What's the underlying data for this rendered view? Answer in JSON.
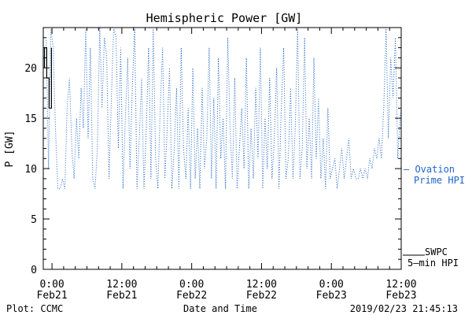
{
  "chart_data": {
    "type": "line",
    "title": "Hemispheric Power [GW]",
    "ylabel": "P [GW]",
    "xlabel": "Date and Time",
    "ylim": [
      0,
      24
    ],
    "yticks": [
      0,
      5,
      10,
      15,
      20
    ],
    "xlim_hours": [
      -1.5,
      60
    ],
    "xticks": [
      {
        "hour": 0,
        "time": "0:00",
        "date": "Feb21"
      },
      {
        "hour": 12,
        "time": "12:00",
        "date": "Feb21"
      },
      {
        "hour": 24,
        "time": "0:00",
        "date": "Feb22"
      },
      {
        "hour": 36,
        "time": "12:00",
        "date": "Feb22"
      },
      {
        "hour": 48,
        "time": "0:00",
        "date": "Feb23"
      },
      {
        "hour": 60,
        "time": "12:00",
        "date": "Feb23"
      }
    ],
    "series": [
      {
        "name": "Ovation Prime HPI",
        "legend_lines": [
          "— Ovation",
          "Prime HPI"
        ],
        "color": "#1f64c8",
        "style": "dotted",
        "x": [
          -1.0,
          -0.6,
          -0.2,
          0.2,
          0.6,
          1.0,
          1.4,
          1.8,
          2.2,
          2.6,
          3.0,
          3.4,
          3.8,
          4.2,
          4.6,
          5.0,
          5.4,
          5.8,
          6.2,
          6.6,
          7.0,
          7.4,
          7.8,
          8.2,
          8.6,
          9.0,
          9.4,
          9.8,
          10.2,
          10.6,
          11.0,
          11.4,
          11.8,
          12.2,
          12.6,
          13.0,
          13.4,
          13.8,
          14.2,
          14.6,
          15.0,
          15.4,
          15.8,
          16.2,
          16.6,
          17.0,
          17.4,
          17.8,
          18.2,
          18.6,
          19.0,
          19.4,
          19.8,
          20.2,
          20.6,
          21.0,
          21.4,
          21.8,
          22.2,
          22.6,
          23.0,
          23.4,
          23.8,
          24.2,
          24.6,
          25.0,
          25.4,
          25.8,
          26.2,
          26.6,
          27.0,
          27.4,
          27.8,
          28.2,
          28.6,
          29.0,
          29.4,
          29.8,
          30.2,
          30.6,
          31.0,
          31.4,
          31.8,
          32.2,
          32.6,
          33.0,
          33.4,
          33.8,
          34.2,
          34.6,
          35.0,
          35.4,
          35.8,
          36.2,
          36.6,
          37.0,
          37.4,
          37.8,
          38.2,
          38.6,
          39.0,
          39.4,
          39.8,
          40.2,
          40.6,
          41.0,
          41.4,
          41.8,
          42.2,
          42.6,
          43.0,
          43.4,
          43.8,
          44.2,
          44.6,
          45.0,
          45.4,
          45.8,
          46.2,
          46.6,
          47.0,
          47.4,
          47.8,
          48.2,
          48.6,
          49.0,
          49.4,
          49.8,
          50.2,
          50.6,
          51.0,
          51.4,
          51.8,
          52.2,
          52.6,
          53.0,
          53.4,
          53.8,
          54.2,
          54.6,
          55.0,
          55.4,
          55.8,
          56.2,
          56.6,
          57.0,
          57.4,
          57.8,
          58.2,
          58.6,
          59.0,
          59.4,
          59.8,
          60.2,
          60.6,
          61.0,
          61.4,
          61.8,
          62.2,
          62.6,
          63.0,
          63.4,
          63.8,
          64.2,
          64.6,
          65.0,
          65.4,
          65.8,
          66.2,
          66.6,
          67.0,
          67.4,
          67.8
        ],
        "y": [
          23,
          10,
          24,
          22,
          14,
          8,
          8,
          9,
          8,
          16,
          19,
          12,
          9,
          15,
          11,
          18,
          14,
          24,
          13,
          22,
          9,
          8,
          12,
          24,
          16,
          23,
          21,
          9,
          17,
          24,
          23,
          12,
          22,
          8,
          15,
          21,
          10,
          18,
          24,
          8,
          13,
          19,
          8,
          14,
          22,
          9,
          24,
          11,
          8,
          16,
          22,
          9,
          14,
          20,
          8,
          12,
          18,
          8,
          22,
          12,
          9,
          16,
          8,
          20,
          9,
          14,
          8,
          18,
          10,
          13,
          22,
          9,
          17,
          8,
          21,
          11,
          15,
          8,
          23,
          14,
          9,
          19,
          8,
          12,
          16,
          10,
          21,
          8,
          14,
          9,
          18,
          11,
          22,
          8,
          15,
          10,
          19,
          9,
          13,
          20,
          8,
          16,
          22,
          9,
          11,
          18,
          9,
          14,
          24,
          9,
          12,
          23,
          10,
          15,
          9,
          21,
          11,
          17,
          9,
          13,
          8,
          16,
          9,
          10,
          11,
          8,
          10,
          12,
          9,
          11,
          13,
          9,
          10,
          9,
          9,
          10,
          9,
          10,
          9,
          11,
          10,
          12,
          11,
          13,
          11,
          16,
          24,
          13,
          21,
          17,
          23,
          11,
          15,
          17,
          12,
          9,
          15,
          13,
          8,
          11,
          10,
          13,
          9,
          15,
          11,
          12,
          9,
          11,
          10,
          12,
          10,
          11,
          10
        ]
      },
      {
        "name": "SWPC 5-min HPI",
        "legend_lines": [
          "SWPC",
          "5—min HPI"
        ],
        "color": "#000000",
        "style": "solid",
        "x": [
          -1.3,
          -1.3,
          -0.9,
          -0.9,
          -0.5,
          -0.5,
          -0.1,
          -0.1
        ],
        "y": [
          20,
          22,
          22,
          19,
          19,
          16,
          16,
          22
        ]
      }
    ]
  },
  "footer": {
    "left": "Plot: CCMC",
    "center": "Date and Time",
    "right": "2019/02/23 21:45:13"
  }
}
